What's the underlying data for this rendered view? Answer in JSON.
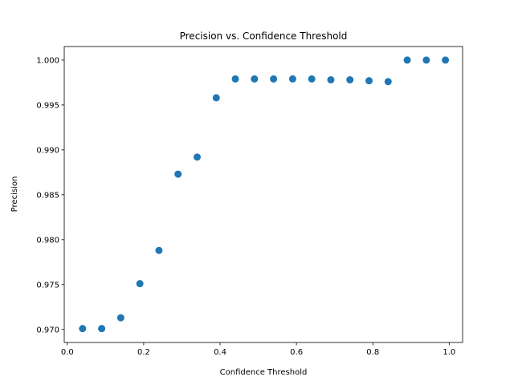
{
  "chart_data": {
    "type": "scatter",
    "title": "Precision vs. Confidence Threshold",
    "xlabel": "Confidence Threshold",
    "ylabel": "Precision",
    "xlim": [
      -0.008,
      1.035
    ],
    "ylim": [
      0.96855,
      1.00151
    ],
    "xticks": [
      0.0,
      0.2,
      0.4,
      0.6,
      0.8,
      1.0
    ],
    "xtick_labels": [
      "0.0",
      "0.2",
      "0.4",
      "0.6",
      "0.8",
      "1.0"
    ],
    "yticks": [
      0.97,
      0.975,
      0.98,
      0.985,
      0.99,
      0.995,
      1.0
    ],
    "ytick_labels": [
      "0.970",
      "0.975",
      "0.980",
      "0.985",
      "0.990",
      "0.995",
      "1.000"
    ],
    "grid": false,
    "legend": "none",
    "marker_color": "#1f77b4",
    "series": [
      {
        "x": [
          0.04,
          0.09,
          0.14,
          0.19,
          0.24,
          0.29,
          0.34,
          0.39,
          0.44,
          0.49,
          0.54,
          0.59,
          0.64,
          0.69,
          0.74,
          0.79,
          0.84,
          0.89,
          0.94,
          0.99
        ],
        "y": [
          0.9701,
          0.9701,
          0.9713,
          0.9751,
          0.9788,
          0.9873,
          0.9892,
          0.9958,
          0.9979,
          0.9979,
          0.9979,
          0.9979,
          0.9979,
          0.9978,
          0.9978,
          0.9977,
          0.9976,
          1.0,
          1.0,
          1.0
        ]
      }
    ]
  }
}
